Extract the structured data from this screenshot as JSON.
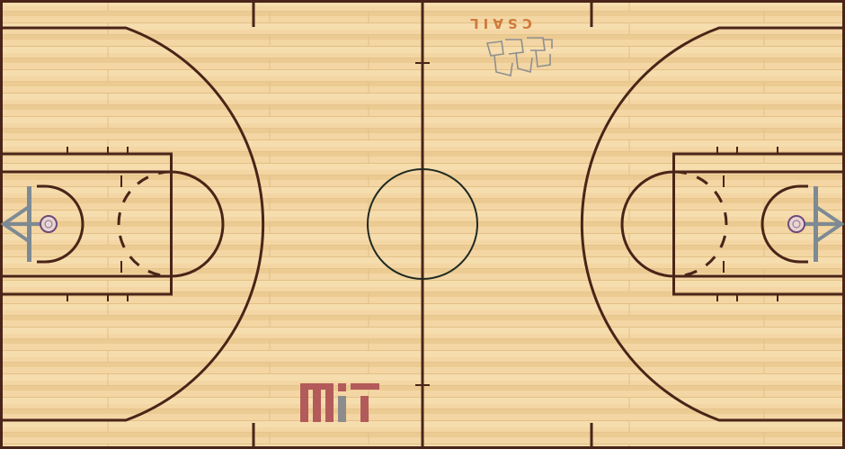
{
  "court": {
    "floor_color": "#f1d4a0",
    "line_color": "#4a2418",
    "center_circle_color": "#1f2a22"
  },
  "logos": {
    "csail": {
      "text": "CSAIL",
      "color": "#d07a3c",
      "icon": "csail-squiggle-logo"
    },
    "mit": {
      "color_primary": "#b35a5a",
      "color_secondary": "#8c8c8c",
      "icon": "mit-logo"
    }
  },
  "hoops": [
    {
      "side": "left",
      "icon": "basketball-hoop-icon"
    },
    {
      "side": "right",
      "icon": "basketball-hoop-icon"
    }
  ]
}
